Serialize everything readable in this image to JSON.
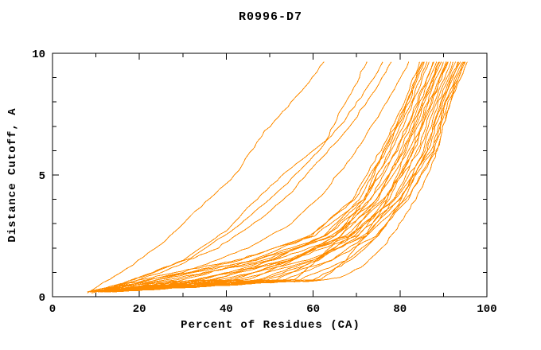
{
  "chart_data": {
    "type": "line",
    "title": "R0996-D7",
    "xlabel": "Percent of Residues (CA)",
    "ylabel": "Distance Cutoff, A",
    "xlim": [
      0,
      100
    ],
    "ylim": [
      0,
      10
    ],
    "xticks_major": [
      0,
      20,
      40,
      60,
      80,
      100
    ],
    "xticks_minor": [
      10,
      30,
      50,
      70,
      90
    ],
    "yticks_major": [
      0,
      5,
      10
    ],
    "yticks_minor": [
      1,
      2,
      3,
      4,
      6,
      7,
      8,
      9
    ],
    "grid": "off",
    "legend": "none",
    "line_color": "#ff8c00",
    "series": [
      {
        "points": [
          [
            8,
            0.15
          ],
          [
            13,
            0.7
          ],
          [
            18.5,
            1.3
          ],
          [
            26,
            2.3
          ],
          [
            33,
            3.5
          ],
          [
            42,
            5
          ],
          [
            48,
            6.6
          ],
          [
            55,
            8
          ],
          [
            59,
            8.8
          ],
          [
            62.5,
            9.65
          ]
        ]
      },
      {
        "points": [
          [
            9,
            0.15
          ],
          [
            20,
            0.8
          ],
          [
            30,
            1.5
          ],
          [
            40,
            2.7
          ],
          [
            48,
            4.2
          ],
          [
            55,
            5.3
          ],
          [
            63,
            6.4
          ],
          [
            66,
            7.5
          ],
          [
            69.5,
            8.6
          ],
          [
            70.5,
            9
          ],
          [
            72.4,
            9.65
          ]
        ]
      },
      {
        "points": [
          [
            10,
            0.2
          ],
          [
            22,
            0.9
          ],
          [
            32,
            1.6
          ],
          [
            42,
            2.8
          ],
          [
            50,
            4
          ],
          [
            57,
            5.2
          ],
          [
            63.2,
            6.4
          ],
          [
            67,
            7.2
          ],
          [
            71,
            8.2
          ],
          [
            74,
            9
          ],
          [
            76,
            9.65
          ]
        ]
      },
      {
        "points": [
          [
            10.5,
            0.2
          ],
          [
            25,
            1
          ],
          [
            38,
            2
          ],
          [
            48,
            3.2
          ],
          [
            55,
            4.3
          ],
          [
            61,
            5.5
          ],
          [
            66,
            6.5
          ],
          [
            70,
            7.4
          ],
          [
            73.5,
            8.3
          ],
          [
            76,
            9
          ],
          [
            78,
            9.65
          ]
        ]
      },
      {
        "points": [
          [
            11,
            0.2
          ],
          [
            30,
            1
          ],
          [
            45,
            2
          ],
          [
            55,
            3
          ],
          [
            62,
            4.2
          ],
          [
            67,
            5.3
          ],
          [
            71,
            6.3
          ],
          [
            75,
            7.4
          ],
          [
            78,
            8.3
          ],
          [
            80,
            9
          ],
          [
            82,
            9.65
          ]
        ]
      },
      {
        "points": [
          [
            12,
            0.2
          ],
          [
            40,
            0.5
          ],
          [
            60,
            0.65
          ],
          [
            66,
            0.8
          ],
          [
            71,
            1.2
          ],
          [
            76,
            2
          ],
          [
            80,
            3
          ],
          [
            83.5,
            4
          ],
          [
            86.5,
            5
          ],
          [
            88.5,
            6
          ],
          [
            90,
            7
          ],
          [
            91.5,
            8
          ],
          [
            93.5,
            9
          ],
          [
            94.8,
            9.65
          ]
        ]
      },
      {
        "points": [
          [
            8,
            0.2
          ],
          [
            20,
            0.7
          ],
          [
            42.4,
            1.5
          ],
          [
            60.2,
            2.5
          ],
          [
            71.5,
            4
          ],
          [
            79.4,
            6
          ],
          [
            84.2,
            8
          ],
          [
            87.8,
            9.65
          ]
        ]
      },
      {
        "points": [
          [
            8.3,
            0.2
          ],
          [
            22.1,
            0.7
          ],
          [
            46.8,
            1.5
          ],
          [
            64.9,
            2.5
          ],
          [
            76.3,
            4
          ],
          [
            84.6,
            6
          ],
          [
            88.4,
            8
          ],
          [
            92.2,
            9.65
          ]
        ]
      },
      {
        "points": [
          [
            8.6,
            0.2
          ],
          [
            24.2,
            0.7
          ],
          [
            43.2,
            1.5
          ],
          [
            59.1,
            2.5
          ],
          [
            69.6,
            4
          ],
          [
            76.8,
            6
          ],
          [
            82.1,
            8
          ],
          [
            85.6,
            9.65
          ]
        ]
      },
      {
        "points": [
          [
            8.9,
            0.2
          ],
          [
            26.3,
            0.7
          ],
          [
            50.8,
            1.5
          ],
          [
            68,
            2.5
          ],
          [
            79,
            4
          ],
          [
            87.2,
            6
          ],
          [
            90.5,
            8
          ],
          [
            94.4,
            9.65
          ]
        ]
      },
      {
        "points": [
          [
            9.2,
            0.2
          ],
          [
            28.4,
            0.7
          ],
          [
            48.8,
            1.5
          ],
          [
            64.4,
            2.5
          ],
          [
            74.6,
            4
          ],
          [
            82,
            6
          ],
          [
            86.3,
            8
          ],
          [
            90,
            9.65
          ]
        ]
      },
      {
        "points": [
          [
            9.5,
            0.2
          ],
          [
            30.5,
            0.7
          ],
          [
            46,
            1.5
          ],
          [
            59.6,
            2.5
          ],
          [
            69,
            4
          ],
          [
            75.5,
            6
          ],
          [
            81,
            8
          ],
          [
            84.5,
            9.65
          ]
        ]
      },
      {
        "points": [
          [
            9.8,
            0.2
          ],
          [
            32.6,
            0.7
          ],
          [
            53.6,
            1.5
          ],
          [
            68.6,
            2.5
          ],
          [
            78.5,
            4
          ],
          [
            85.9,
            6
          ],
          [
            89.4,
            8
          ],
          [
            93.3,
            9.65
          ]
        ]
      },
      {
        "points": [
          [
            10.1,
            0.2
          ],
          [
            34.7,
            0.7
          ],
          [
            50,
            1.5
          ],
          [
            62.8,
            2.5
          ],
          [
            71.7,
            4
          ],
          [
            78.1,
            6
          ],
          [
            83.1,
            8
          ],
          [
            86.7,
            9.65
          ]
        ]
      },
      {
        "points": [
          [
            10.4,
            0.2
          ],
          [
            36.8,
            0.7
          ],
          [
            54.4,
            1.5
          ],
          [
            67.5,
            2.5
          ],
          [
            76.5,
            4
          ],
          [
            83.3,
            6
          ],
          [
            87.3,
            8
          ],
          [
            91.1,
            9.65
          ]
        ]
      },
      {
        "points": [
          [
            10.7,
            0.2
          ],
          [
            38.9,
            0.7
          ],
          [
            58.8,
            1.5
          ],
          [
            72.2,
            2.5
          ],
          [
            81.4,
            4
          ],
          [
            88.5,
            6
          ],
          [
            91.5,
            8
          ],
          [
            95.5,
            9.65
          ]
        ]
      },
      {
        "points": [
          [
            11,
            0.2
          ],
          [
            41,
            0.7
          ],
          [
            55.2,
            1.5
          ],
          [
            66.5,
            2.5
          ],
          [
            74.6,
            4
          ],
          [
            80.7,
            6
          ],
          [
            85.2,
            8
          ],
          [
            88.9,
            9.65
          ]
        ]
      },
      {
        "points": [
          [
            11.3,
            0.2
          ],
          [
            43.1,
            0.7
          ],
          [
            60,
            1.5
          ],
          [
            71.7,
            2.5
          ],
          [
            80,
            4
          ],
          [
            86.6,
            6
          ],
          [
            89.9,
            8
          ],
          [
            93.9,
            9.65
          ]
        ]
      },
      {
        "points": [
          [
            11.6,
            0.2
          ],
          [
            45.2,
            0.7
          ],
          [
            55.6,
            1.5
          ],
          [
            64.9,
            2.5
          ],
          [
            72.1,
            4
          ],
          [
            77.5,
            6
          ],
          [
            82.6,
            8
          ],
          [
            86.2,
            9.65
          ]
        ]
      },
      {
        "points": [
          [
            11.9,
            0.2
          ],
          [
            47.3,
            0.7
          ],
          [
            60,
            1.5
          ],
          [
            69.6,
            2.5
          ],
          [
            76.9,
            4
          ],
          [
            82.7,
            6
          ],
          [
            86.8,
            8
          ],
          [
            90.6,
            9.65
          ]
        ]
      },
      {
        "points": [
          [
            12.2,
            0.2
          ],
          [
            49.4,
            0.7
          ],
          [
            64.4,
            1.5
          ],
          [
            74.3,
            2.5
          ],
          [
            81.8,
            4
          ],
          [
            87.9,
            6
          ],
          [
            91,
            8
          ],
          [
            95,
            9.65
          ]
        ]
      },
      {
        "points": [
          [
            12.5,
            0.2
          ],
          [
            51.5,
            0.7
          ],
          [
            60.8,
            1.5
          ],
          [
            68.6,
            2.5
          ],
          [
            75,
            4
          ],
          [
            80.1,
            6
          ],
          [
            84.7,
            8
          ],
          [
            88.4,
            9.65
          ]
        ]
      },
      {
        "points": [
          [
            12.8,
            0.2
          ],
          [
            53.6,
            0.7
          ],
          [
            64.4,
            1.5
          ],
          [
            72.2,
            2.5
          ],
          [
            78.7,
            4
          ],
          [
            84,
            6
          ],
          [
            87.8,
            8
          ],
          [
            91.7,
            9.65
          ]
        ]
      },
      {
        "points": [
          [
            13.1,
            0.2
          ],
          [
            55.7,
            0.7
          ],
          [
            60.8,
            1.5
          ],
          [
            66.5,
            2.5
          ],
          [
            71.9,
            4
          ],
          [
            76.2,
            6
          ],
          [
            81.5,
            8
          ],
          [
            85.1,
            9.65
          ]
        ]
      },
      {
        "points": [
          [
            13.7,
            0.2
          ],
          [
            59.9,
            0.7
          ],
          [
            68.8,
            1.5
          ],
          [
            74.9,
            2.5
          ],
          [
            80.4,
            4
          ],
          [
            85.3,
            6
          ],
          [
            88.9,
            8
          ],
          [
            92.8,
            9.65
          ]
        ]
      },
      {
        "points": [
          [
            14,
            0.2
          ],
          [
            62,
            0.7
          ],
          [
            67.6,
            1.5
          ],
          [
            72.2,
            2.5
          ],
          [
            77.1,
            4
          ],
          [
            81.4,
            6
          ],
          [
            85.7,
            8
          ],
          [
            89.5,
            9.65
          ]
        ]
      },
      {
        "points": [
          [
            8.7,
            0.2
          ],
          [
            25,
            0.7
          ],
          [
            46.5,
            1.5
          ],
          [
            63,
            2.5
          ],
          [
            73.4,
            4
          ],
          [
            81,
            6
          ],
          [
            85.4,
            8
          ],
          [
            89.1,
            9.65
          ]
        ]
      },
      {
        "points": [
          [
            9.9,
            0.2
          ],
          [
            33.4,
            0.7
          ],
          [
            55,
            1.5
          ],
          [
            70,
            2.5
          ],
          [
            79.9,
            4
          ],
          [
            87.5,
            6
          ],
          [
            90.7,
            8
          ],
          [
            94.6,
            9.65
          ]
        ]
      },
      {
        "points": [
          [
            11.1,
            0.2
          ],
          [
            41.8,
            0.7
          ],
          [
            54.7,
            1.5
          ],
          [
            65.4,
            2.5
          ],
          [
            73.3,
            4
          ],
          [
            79.1,
            6
          ],
          [
            83.9,
            8
          ],
          [
            87.6,
            9.65
          ]
        ]
      },
      {
        "points": [
          [
            12.1,
            0.2
          ],
          [
            48.6,
            0.7
          ],
          [
            61.1,
            1.5
          ],
          [
            70.4,
            2.5
          ],
          [
            77.6,
            4
          ],
          [
            83,
            6
          ],
          [
            87.1,
            8
          ],
          [
            90.9,
            9.65
          ]
        ]
      },
      {
        "points": [
          [
            13.3,
            0.2
          ],
          [
            57,
            0.7
          ],
          [
            67.7,
            1.5
          ],
          [
            74.9,
            2.5
          ],
          [
            80.9,
            4
          ],
          [
            86.2,
            6
          ],
          [
            89.6,
            8
          ],
          [
            93.5,
            9.65
          ]
        ]
      },
      {
        "points": [
          [
            10.5,
            0.2
          ],
          [
            37.6,
            0.7
          ],
          [
            50.7,
            1.5
          ],
          [
            62.3,
            2.5
          ],
          [
            70.6,
            4
          ],
          [
            76.5,
            6
          ],
          [
            81.8,
            8
          ],
          [
            85.4,
            9.65
          ]
        ]
      }
    ]
  }
}
